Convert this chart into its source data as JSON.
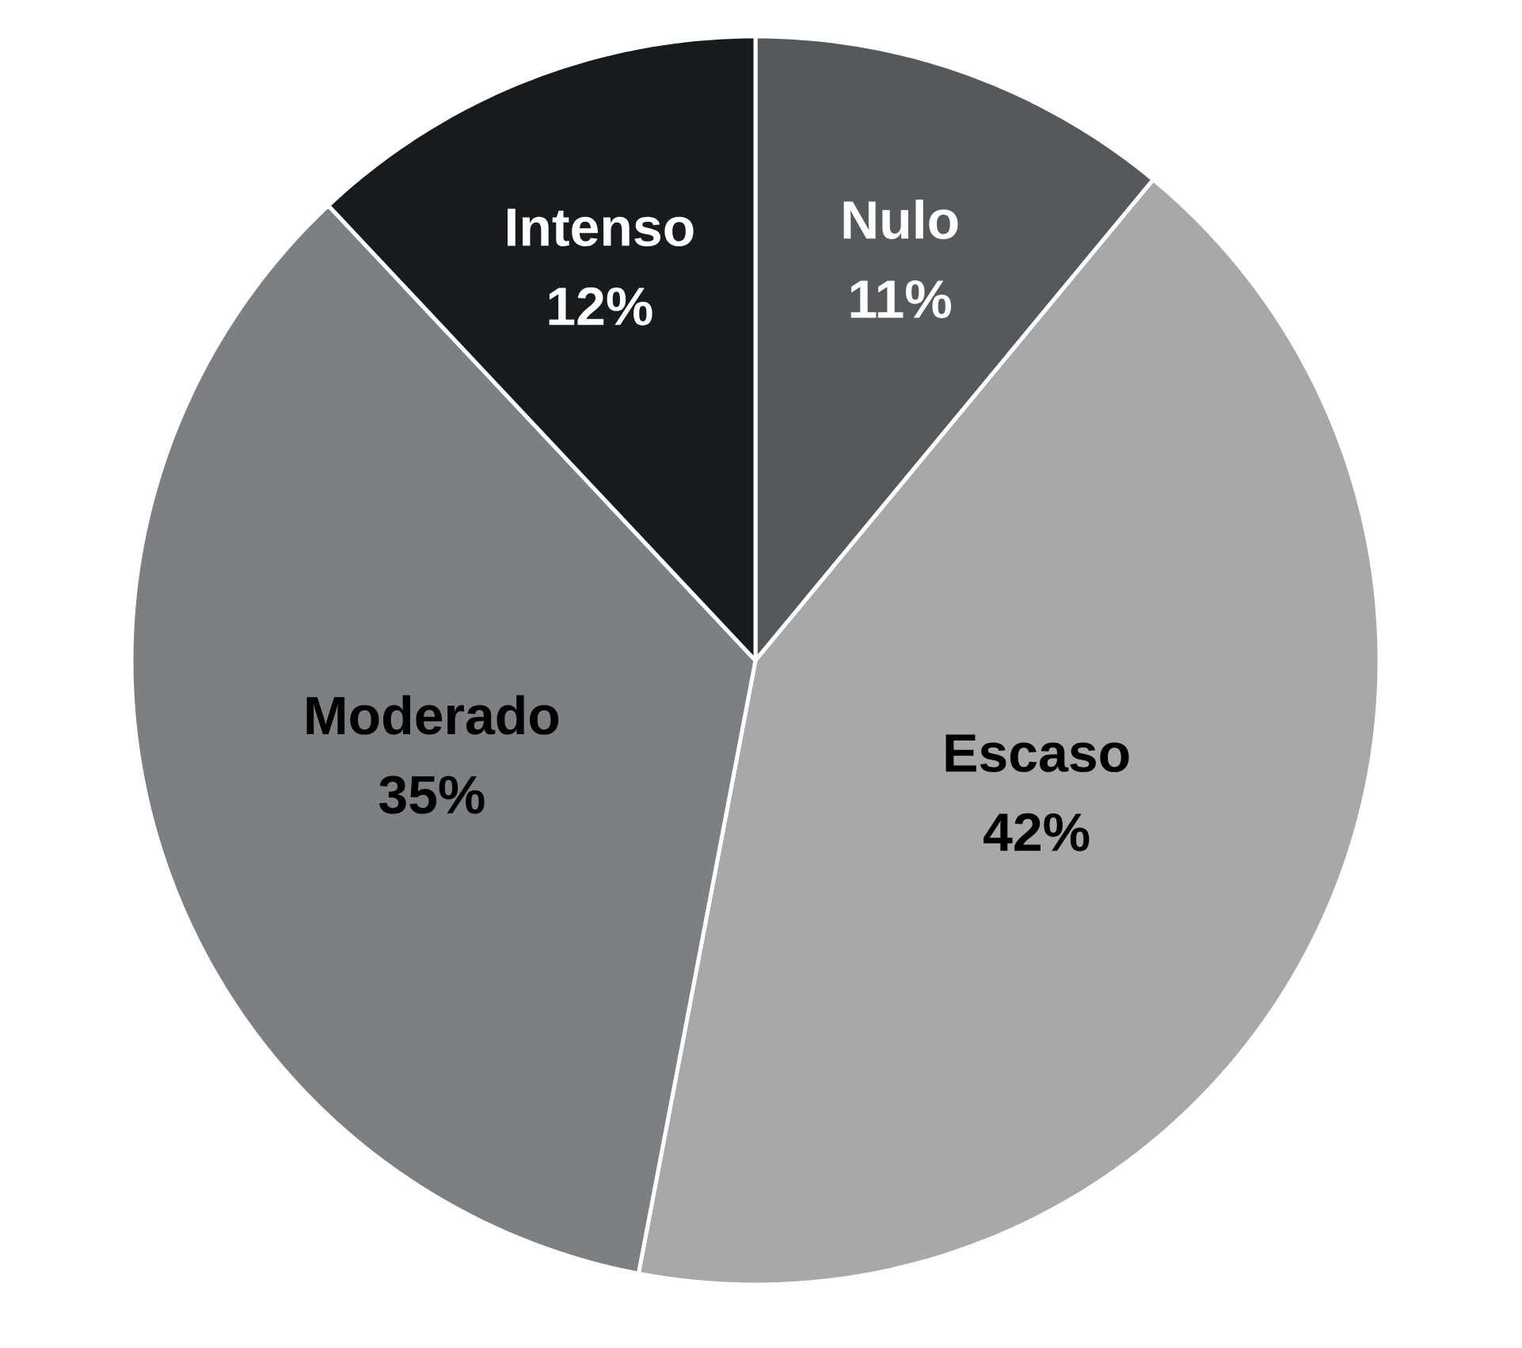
{
  "chart_data": {
    "type": "pie",
    "categories": [
      "Nulo",
      "Escaso",
      "Moderado",
      "Intenso"
    ],
    "values": [
      11,
      42,
      35,
      12
    ],
    "value_labels": [
      "11%",
      "42%",
      "35%",
      "12%"
    ],
    "colors": [
      "#56595b",
      "#a7a8aa",
      "#7d8083",
      "#171b1e"
    ]
  }
}
